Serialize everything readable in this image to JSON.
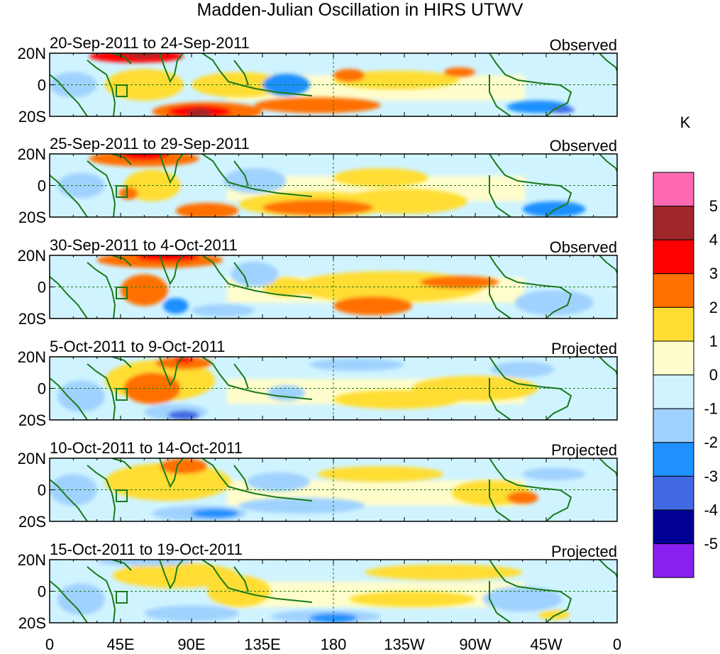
{
  "chart_data": {
    "type": "heatmap",
    "title": "Madden-Julian Oscillation in HIRS UTWV",
    "colorbar": {
      "unit": "K",
      "levels": [
        5,
        4,
        3,
        2,
        1,
        0,
        -1,
        -2,
        -3,
        -4,
        -5
      ],
      "colors": [
        "#FF69B4",
        "#A0262A",
        "#FF0000",
        "#FF7000",
        "#FFDD33",
        "#FFFDCC",
        "#D0F4FF",
        "#A0D2FF",
        "#1E90FF",
        "#4169E1",
        "#000096",
        "#8A20F0"
      ]
    },
    "xticks": [
      "0",
      "45E",
      "90E",
      "135E",
      "180",
      "135W",
      "90W",
      "45W",
      "0"
    ],
    "yticks": [
      "20N",
      "0",
      "20S"
    ],
    "lon_range": [
      0,
      360
    ],
    "lat_range": [
      -20,
      20
    ],
    "panels": [
      {
        "dates": "20-Sep-2011 to 24-Sep-2011",
        "type": "Observed",
        "anomalies": [
          [
            55,
            18,
            30,
            4,
            3
          ],
          [
            60,
            19,
            12,
            2,
            4
          ],
          [
            60,
            0,
            25,
            10,
            1
          ],
          [
            100,
            -17,
            35,
            6,
            2
          ],
          [
            95,
            -17,
            20,
            4,
            3
          ],
          [
            95,
            -18,
            8,
            3,
            4
          ],
          [
            170,
            -13,
            40,
            5,
            2
          ],
          [
            190,
            6,
            10,
            4,
            2
          ],
          [
            120,
            0,
            30,
            8,
            1
          ],
          [
            150,
            0,
            15,
            7,
            -2
          ],
          [
            310,
            -14,
            20,
            4,
            -2
          ],
          [
            220,
            3,
            40,
            6,
            1
          ],
          [
            260,
            8,
            10,
            3,
            2
          ],
          [
            15,
            0,
            15,
            8,
            -1
          ],
          [
            325,
            -16,
            8,
            2,
            -3
          ]
        ]
      },
      {
        "dates": "25-Sep-2011 to 29-Sep-2011",
        "type": "Observed",
        "anomalies": [
          [
            60,
            17,
            35,
            5,
            2
          ],
          [
            60,
            19,
            15,
            3,
            3
          ],
          [
            50,
            -5,
            6,
            4,
            2
          ],
          [
            100,
            -16,
            20,
            5,
            2
          ],
          [
            170,
            -12,
            50,
            8,
            1
          ],
          [
            170,
            -14,
            35,
            5,
            2
          ],
          [
            210,
            5,
            30,
            6,
            1
          ],
          [
            225,
            -10,
            40,
            8,
            1
          ],
          [
            130,
            3,
            20,
            8,
            -1
          ],
          [
            320,
            -15,
            20,
            5,
            -2
          ],
          [
            20,
            0,
            15,
            8,
            -1
          ],
          [
            65,
            0,
            18,
            10,
            1
          ]
        ]
      },
      {
        "dates": "30-Sep-2011 to 4-Oct-2011",
        "type": "Observed",
        "anomalies": [
          [
            70,
            17,
            40,
            5,
            2
          ],
          [
            75,
            19,
            20,
            3,
            3
          ],
          [
            60,
            -2,
            15,
            10,
            2
          ],
          [
            80,
            -12,
            8,
            5,
            -2
          ],
          [
            215,
            0,
            60,
            10,
            1
          ],
          [
            205,
            -12,
            25,
            6,
            2
          ],
          [
            260,
            3,
            25,
            4,
            2
          ],
          [
            150,
            0,
            15,
            6,
            1
          ],
          [
            130,
            8,
            15,
            8,
            -1
          ],
          [
            320,
            -10,
            25,
            8,
            -1
          ],
          [
            110,
            -15,
            20,
            4,
            -1
          ]
        ]
      },
      {
        "dates": "5-Oct-2011 to 9-Oct-2011",
        "type": "Projected",
        "anomalies": [
          [
            70,
            5,
            35,
            13,
            1
          ],
          [
            65,
            0,
            18,
            10,
            2
          ],
          [
            85,
            16,
            18,
            4,
            2
          ],
          [
            85,
            18,
            6,
            2,
            3
          ],
          [
            80,
            -15,
            20,
            5,
            -1
          ],
          [
            85,
            -17,
            10,
            3,
            -3
          ],
          [
            150,
            -3,
            12,
            5,
            -1
          ],
          [
            270,
            0,
            40,
            8,
            1
          ],
          [
            220,
            -7,
            40,
            6,
            1
          ],
          [
            300,
            12,
            20,
            5,
            -1
          ],
          [
            20,
            -5,
            15,
            10,
            -1
          ],
          [
            195,
            15,
            30,
            4,
            -1
          ]
        ]
      },
      {
        "dates": "10-Oct-2011 to 14-Oct-2011",
        "type": "Projected",
        "anomalies": [
          [
            75,
            5,
            40,
            12,
            1
          ],
          [
            85,
            15,
            15,
            5,
            2
          ],
          [
            95,
            -15,
            30,
            5,
            -1
          ],
          [
            105,
            -15,
            15,
            3,
            -2
          ],
          [
            145,
            5,
            20,
            6,
            -1
          ],
          [
            160,
            -10,
            40,
            5,
            -1
          ],
          [
            280,
            -2,
            25,
            8,
            1
          ],
          [
            300,
            -5,
            10,
            4,
            2
          ],
          [
            15,
            0,
            15,
            10,
            -1
          ],
          [
            210,
            10,
            40,
            5,
            1
          ],
          [
            320,
            10,
            20,
            4,
            -1
          ]
        ]
      },
      {
        "dates": "15-Oct-2011 to 19-Oct-2011",
        "type": "Projected",
        "anomalies": [
          [
            80,
            10,
            40,
            8,
            1
          ],
          [
            60,
            19,
            30,
            3,
            -1
          ],
          [
            90,
            -14,
            30,
            5,
            -1
          ],
          [
            175,
            -16,
            35,
            4,
            -1
          ],
          [
            180,
            -17,
            15,
            3,
            -2
          ],
          [
            120,
            0,
            20,
            10,
            1
          ],
          [
            230,
            -5,
            40,
            5,
            1
          ],
          [
            300,
            -5,
            25,
            8,
            -1
          ],
          [
            320,
            -15,
            10,
            3,
            1
          ],
          [
            20,
            -5,
            15,
            10,
            -1
          ],
          [
            250,
            12,
            50,
            5,
            1
          ]
        ]
      }
    ]
  }
}
